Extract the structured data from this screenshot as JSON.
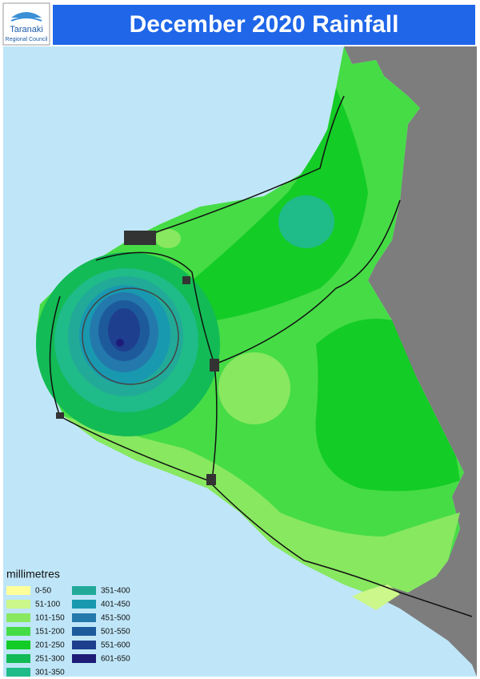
{
  "header": {
    "title": "December 2020 Rainfall",
    "logo_name": "Taranaki",
    "logo_sub": "Regional Council"
  },
  "legend": {
    "title": "millimetres",
    "items": [
      {
        "label": "0-50",
        "color": "#ffff99"
      },
      {
        "label": "51-100",
        "color": "#ccf78a"
      },
      {
        "label": "101-150",
        "color": "#88e860"
      },
      {
        "label": "151-200",
        "color": "#46dc46"
      },
      {
        "label": "201-250",
        "color": "#14cc26"
      },
      {
        "label": "251-300",
        "color": "#12bb55"
      },
      {
        "label": "301-350",
        "color": "#1fbb88"
      },
      {
        "label": "351-400",
        "color": "#22aa99"
      },
      {
        "label": "401-450",
        "color": "#1899b0"
      },
      {
        "label": "451-500",
        "color": "#2479ac"
      },
      {
        "label": "501-550",
        "color": "#1d5a9c"
      },
      {
        "label": "551-600",
        "color": "#1e3f8e"
      },
      {
        "label": "601-650",
        "color": "#1d1d78"
      }
    ]
  }
}
